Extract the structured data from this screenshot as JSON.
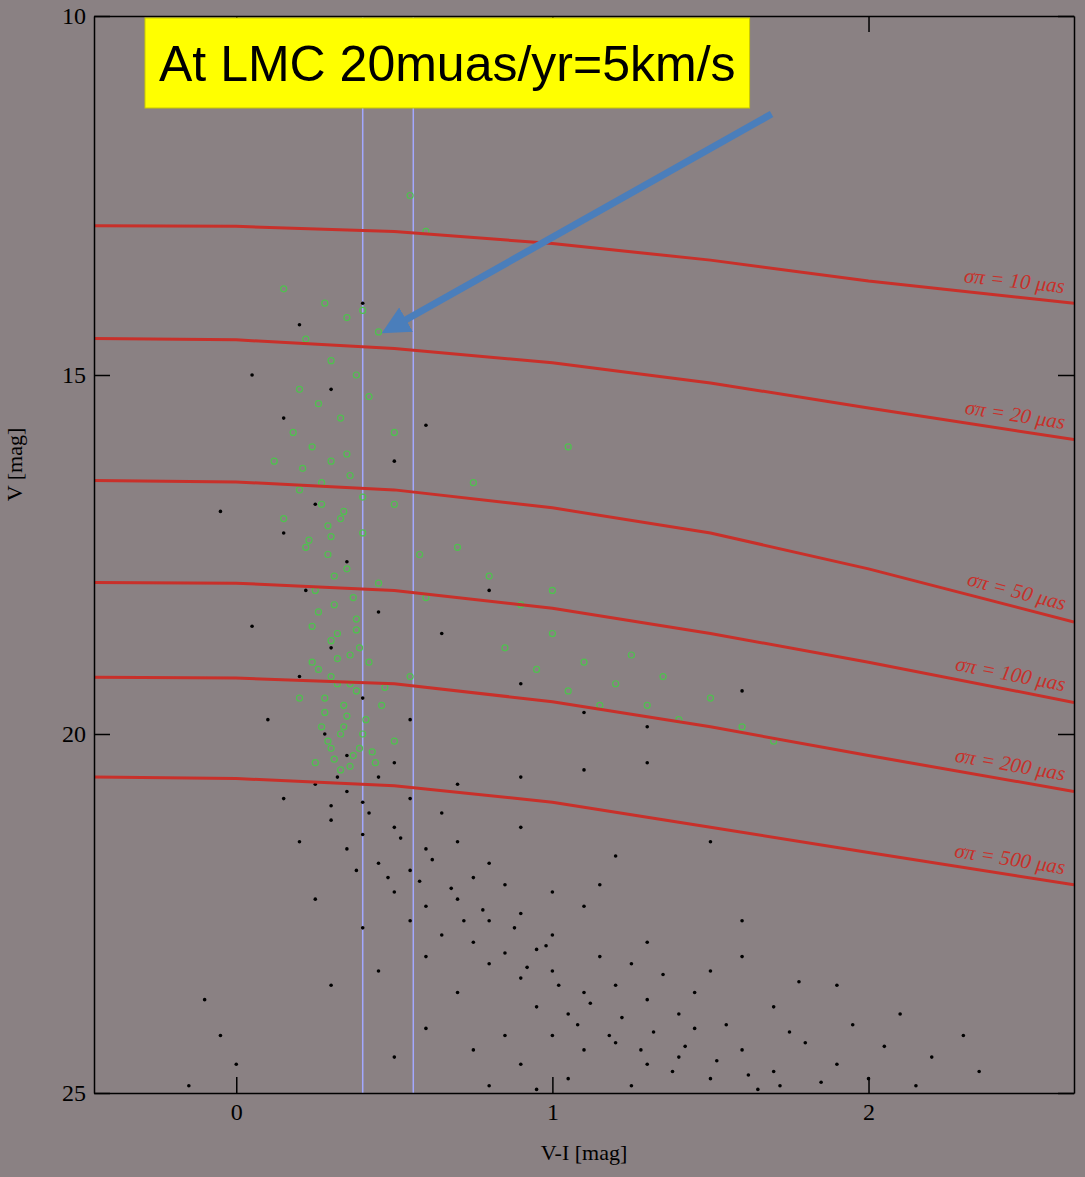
{
  "chart_data": {
    "type": "scatter",
    "xlabel": "V-I [mag]",
    "ylabel": "V [mag]",
    "xlim": [
      -0.45,
      2.65
    ],
    "ylim": [
      25,
      10
    ],
    "xticks": [
      0,
      1,
      2
    ],
    "yticks": [
      10,
      15,
      20,
      25
    ],
    "vlines": [
      0.4,
      0.56
    ],
    "annotations": [
      {
        "text": "At LMC 20muas/yr=5km/s",
        "x": 0.46,
        "y": 14.42
      }
    ],
    "series": [
      {
        "type": "scatter",
        "marker": "dot",
        "color": "#000000",
        "x": [
          0.2,
          0.05,
          0.15,
          0.3,
          0.5,
          0.25,
          0.15,
          0.35,
          0.22,
          0.45,
          0.3,
          0.2,
          0.4,
          0.55,
          0.28,
          0.35,
          0.5,
          0.6,
          0.05,
          0.1,
          0.65,
          0.9,
          1.1,
          1.3,
          0.8,
          1.6,
          0.4,
          -0.05,
          0.25,
          0.35,
          0.45,
          0.55,
          0.7,
          0.9,
          1.1,
          1.3,
          0.3,
          0.4,
          0.15,
          0.3,
          0.4,
          0.5,
          0.6,
          0.45,
          0.55,
          0.7,
          0.8,
          0.35,
          0.65,
          0.9,
          1.2,
          1.5,
          0.2,
          0.75,
          0.5,
          0.6,
          0.7,
          0.8,
          0.9,
          0.65,
          0.75,
          1.0,
          0.55,
          0.85,
          1.1,
          1.3,
          0.4,
          1.6,
          0.95,
          0.8,
          0.9,
          1.0,
          1.1,
          1.2,
          0.95,
          1.05,
          1.3,
          1.4,
          0.7,
          1.5,
          1.7,
          1.9,
          0.6,
          1.15,
          2.1,
          0.3,
          -0.1,
          1.0,
          1.1,
          1.2,
          1.3,
          1.4,
          1.5,
          1.6,
          1.7,
          1.8,
          1.9,
          2.0,
          2.2,
          0.9,
          1.25,
          1.45,
          0.8,
          2.35,
          0.5,
          -0.05,
          0.0,
          -0.15,
          1.05,
          1.65,
          0.32,
          0.42,
          0.52,
          0.62,
          0.58,
          0.68,
          0.78,
          0.88,
          0.98,
          0.72,
          0.85,
          0.92,
          1.02,
          1.12,
          1.22,
          1.32,
          1.42,
          1.52,
          1.62,
          1.72,
          1.08,
          1.18,
          1.28,
          1.38,
          1.55,
          1.75,
          1.85,
          2.05,
          1.95,
          1.35,
          1.25,
          1.45,
          1.6,
          0.48,
          0.38,
          1.0,
          1.15,
          0.25,
          0.45,
          0.6,
          0.75,
          0.85,
          0.95,
          2.15,
          2.3,
          1.78
        ],
        "values": [
          14.3,
          15,
          15.6,
          15.2,
          16.2,
          16.8,
          17.2,
          17.6,
          18,
          18.3,
          18.8,
          19.2,
          19.5,
          19.8,
          20,
          20.3,
          20.4,
          15.7,
          18.5,
          19.8,
          18.6,
          19.3,
          19.7,
          19.9,
          18,
          19.4,
          14,
          16.9,
          20.7,
          20.8,
          20.6,
          20.9,
          20.7,
          20.6,
          20.5,
          20.4,
          21,
          20.95,
          20.9,
          21.2,
          21.4,
          21.3,
          21.6,
          21.8,
          21.9,
          21.5,
          21.8,
          21.6,
          21.1,
          21.3,
          21.7,
          21.5,
          21.5,
          22,
          22.2,
          22.4,
          22.3,
          22.6,
          22.5,
          22.8,
          22.9,
          22.8,
          22.6,
          22.1,
          22.4,
          22.9,
          22.7,
          22.6,
          23,
          23.2,
          23.4,
          23.3,
          23.6,
          23.5,
          23.8,
          23.9,
          23.7,
          23.9,
          23.6,
          23.3,
          23.8,
          23.5,
          23.1,
          23.1,
          23.9,
          23.5,
          23.7,
          24.2,
          24.4,
          24.3,
          24.6,
          24.5,
          24.8,
          24.4,
          24.7,
          24.3,
          24.6,
          24.8,
          24.5,
          24.6,
          24.9,
          24.1,
          24.9,
          24.7,
          24.5,
          24.2,
          24.6,
          24.9,
          24.8,
          24.95,
          20.6,
          21.1,
          21.45,
          21.75,
          22.05,
          22.15,
          22.45,
          22.7,
          22.95,
          22.6,
          23.05,
          23.25,
          23.5,
          23.75,
          23.95,
          24.15,
          24.35,
          24.55,
          24.75,
          24.9,
          24.05,
          24.2,
          24.4,
          24.7,
          24.05,
          24.15,
          24.85,
          24.35,
          24.05,
          23.35,
          23.2,
          23.6,
          23.1,
          22.0,
          21.9,
          22.2,
          22.1,
          22.3,
          23.3,
          24.1,
          24.4,
          24.2,
          24.95,
          24.9,
          24.2,
          23.45
        ]
      },
      {
        "type": "scatter",
        "marker": "circle",
        "color": "#4ec24e",
        "x": [
          0.28,
          0.35,
          0.45,
          0.4,
          0.22,
          0.3,
          0.38,
          0.2,
          0.26,
          0.33,
          0.42,
          0.18,
          0.24,
          0.3,
          0.36,
          0.2,
          0.27,
          0.33,
          0.4,
          0.22,
          0.29,
          0.35,
          0.45,
          0.25,
          0.31,
          0.38,
          0.24,
          0.3,
          0.36,
          0.42,
          0.26,
          0.32,
          0.38,
          0.46,
          0.28,
          0.34,
          0.4,
          0.5,
          0.3,
          0.37,
          0.44,
          0.33,
          0.55,
          0.6,
          0.15,
          0.12,
          0.5,
          0.58,
          0.2,
          0.25,
          0.7,
          0.8,
          0.9,
          1.0,
          1.1,
          1.2,
          1.3,
          1.4,
          0.95,
          1.05,
          1.15,
          1.25,
          1.35,
          1.5,
          1.6,
          1.7,
          0.85,
          1.0,
          0.75,
          1.05,
          0.55,
          0.6,
          0.15,
          0.5,
          0.21,
          0.27,
          0.34,
          0.29,
          0.23,
          0.31,
          0.37,
          0.26,
          0.32,
          0.39,
          0.24,
          0.3,
          0.36,
          0.28,
          0.34,
          0.41,
          0.27,
          0.33,
          0.39,
          0.31,
          0.36,
          0.43,
          0.29,
          0.35,
          0.47,
          0.32,
          0.38,
          0.3,
          0.4,
          0.35
        ],
        "values": [
          14,
          14.2,
          14.4,
          14.1,
          14.5,
          14.8,
          15,
          15.2,
          15.4,
          15.6,
          15.3,
          15.8,
          16,
          16.2,
          16.4,
          16.6,
          16.8,
          17,
          17.2,
          17.4,
          17.5,
          17.7,
          17.9,
          18,
          18.2,
          18.4,
          18.5,
          18.7,
          18.9,
          19,
          19.1,
          19.3,
          19.4,
          19.6,
          19.7,
          19.9,
          20,
          20.1,
          20.2,
          20.3,
          20.4,
          20.5,
          19.2,
          18.1,
          17,
          16.2,
          16.8,
          17.5,
          19.5,
          20.4,
          17.4,
          17.8,
          18.2,
          18.6,
          19,
          19.3,
          19.6,
          19.8,
          19.1,
          19.4,
          19.6,
          18.9,
          19.2,
          19.5,
          19.9,
          20.1,
          18.8,
          18,
          16.5,
          16,
          12.5,
          13,
          13.8,
          15.8,
          16.3,
          16.5,
          16.9,
          17.1,
          17.3,
          17.8,
          18.1,
          18.3,
          18.6,
          18.8,
          19.0,
          19.2,
          19.3,
          19.5,
          19.6,
          19.8,
          19.9,
          20.0,
          20.2,
          20.35,
          20.45,
          20.25,
          20.1,
          19.75,
          19.35,
          18.95,
          18.55,
          17.25,
          16.7,
          16.1
        ]
      },
      {
        "type": "line",
        "line_style": "solid",
        "color": "#c8302a",
        "name": "σπ = 10 μas",
        "x": [
          -0.45,
          0,
          0.5,
          1,
          1.5,
          2,
          2.65
        ],
        "values": [
          12.92,
          12.93,
          13.0,
          13.17,
          13.4,
          13.69,
          14.0
        ]
      },
      {
        "type": "line",
        "line_style": "solid",
        "color": "#c8302a",
        "name": "σπ = 20 μas",
        "x": [
          -0.45,
          0,
          0.5,
          1,
          1.5,
          2,
          2.65
        ],
        "values": [
          14.49,
          14.51,
          14.63,
          14.83,
          15.11,
          15.46,
          15.9
        ]
      },
      {
        "type": "line",
        "line_style": "solid",
        "color": "#c8302a",
        "name": "σπ = 50 μas",
        "x": [
          -0.45,
          0,
          0.5,
          1,
          1.5,
          2,
          2.65
        ],
        "values": [
          16.47,
          16.49,
          16.6,
          16.85,
          17.2,
          17.7,
          18.44
        ]
      },
      {
        "type": "line",
        "line_style": "solid",
        "color": "#c8302a",
        "name": "σπ = 100 μas",
        "x": [
          -0.45,
          0,
          0.5,
          1,
          1.5,
          2,
          2.65
        ],
        "values": [
          17.89,
          17.9,
          18.0,
          18.25,
          18.6,
          19.0,
          19.56
        ]
      },
      {
        "type": "line",
        "line_style": "solid",
        "color": "#c8302a",
        "name": "σπ = 200 μas",
        "x": [
          -0.45,
          0,
          0.5,
          1,
          1.5,
          2,
          2.65
        ],
        "values": [
          19.21,
          19.22,
          19.3,
          19.55,
          19.9,
          20.3,
          20.8
        ]
      },
      {
        "type": "line",
        "line_style": "solid",
        "color": "#c8302a",
        "name": "σπ = 500 μas",
        "x": [
          -0.45,
          0,
          0.5,
          1,
          1.5,
          2,
          2.65
        ],
        "values": [
          20.6,
          20.62,
          20.72,
          20.95,
          21.3,
          21.65,
          22.1
        ]
      }
    ]
  }
}
